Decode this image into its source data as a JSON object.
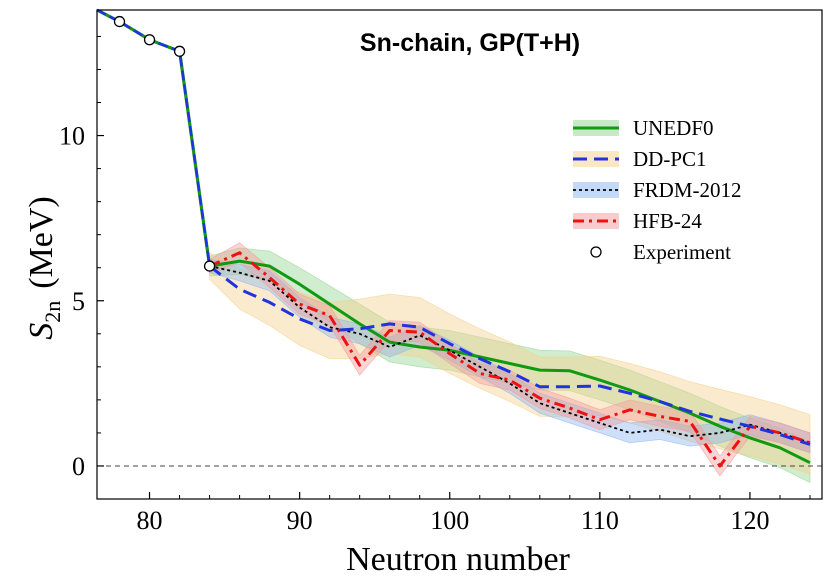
{
  "chart_data": {
    "type": "line",
    "title": "Sn-chain, GP(T+H)",
    "xlabel": "Neutron number",
    "ylabel_main": "S",
    "ylabel_sub": "2n",
    "ylabel_unit": "(MeV)",
    "xlim": [
      76.5,
      124.8
    ],
    "ylim": [
      -1.0,
      13.8
    ],
    "xticks": [
      80,
      90,
      100,
      110,
      120
    ],
    "yticks": [
      0,
      5,
      10
    ],
    "xtick_labels": [
      "80",
      "90",
      "100",
      "110",
      "120"
    ],
    "ytick_labels": [
      "0",
      "5",
      "10"
    ],
    "zero_line": true,
    "legend_position": "top-right",
    "shared_segment": {
      "x": [
        76.5,
        78,
        80,
        82,
        84
      ],
      "y": [
        13.9,
        13.45,
        12.9,
        12.55,
        6.05
      ]
    },
    "experiment": {
      "name": "Experiment",
      "x": [
        78,
        80,
        82,
        84
      ],
      "y": [
        13.45,
        12.9,
        12.55,
        6.05
      ]
    },
    "series": [
      {
        "name": "UNEDF0",
        "color": "#119911",
        "band_color": "#8fd38f",
        "dash": "solid",
        "x": [
          84,
          86,
          88,
          90,
          92,
          94,
          96,
          98,
          100,
          102,
          104,
          106,
          108,
          110,
          112,
          114,
          116,
          118,
          120,
          122,
          124
        ],
        "y": [
          6.05,
          6.2,
          6.05,
          5.5,
          4.9,
          4.3,
          3.75,
          3.6,
          3.5,
          3.3,
          3.1,
          2.9,
          2.88,
          2.6,
          2.3,
          1.95,
          1.6,
          1.2,
          0.85,
          0.55,
          0.1
        ],
        "err": [
          0.3,
          0.4,
          0.45,
          0.5,
          0.55,
          0.6,
          0.6,
          0.6,
          0.6,
          0.6,
          0.6,
          0.6,
          0.6,
          0.6,
          0.6,
          0.6,
          0.6,
          0.6,
          0.6,
          0.6,
          0.6
        ]
      },
      {
        "name": "DD-PC1",
        "color": "#2233dd",
        "band_color": "#f5cf8a",
        "dash": "dashed",
        "x": [
          84,
          86,
          88,
          90,
          92,
          94,
          96,
          98,
          100,
          102,
          104,
          106,
          108,
          110,
          112,
          114,
          116,
          118,
          120,
          122,
          124
        ],
        "y": [
          6.05,
          5.35,
          4.95,
          4.45,
          4.1,
          4.15,
          4.3,
          4.2,
          3.7,
          3.25,
          2.85,
          2.4,
          2.4,
          2.42,
          2.2,
          1.95,
          1.65,
          1.42,
          1.2,
          0.95,
          0.65
        ],
        "err": [
          0.4,
          0.6,
          0.7,
          0.8,
          0.85,
          0.9,
          0.9,
          0.9,
          0.9,
          0.9,
          0.9,
          0.9,
          0.9,
          0.9,
          0.9,
          0.9,
          0.9,
          0.9,
          0.9,
          0.9,
          0.9
        ]
      },
      {
        "name": "FRDM-2012",
        "color": "#000000",
        "band_color": "#8ab4f0",
        "dash": "dotted",
        "x": [
          84,
          86,
          88,
          90,
          92,
          94,
          96,
          98,
          100,
          102,
          104,
          106,
          108,
          110,
          112,
          114,
          116,
          118,
          120,
          122,
          124
        ],
        "y": [
          6.05,
          5.85,
          5.6,
          4.8,
          4.2,
          4.0,
          3.6,
          3.95,
          3.5,
          3.0,
          2.5,
          1.9,
          1.6,
          1.3,
          1.0,
          1.1,
          0.9,
          1.0,
          1.25,
          1.0,
          0.7
        ],
        "err": [
          0.2,
          0.25,
          0.3,
          0.3,
          0.3,
          0.3,
          0.3,
          0.3,
          0.3,
          0.3,
          0.3,
          0.3,
          0.3,
          0.3,
          0.3,
          0.3,
          0.3,
          0.3,
          0.3,
          0.3,
          0.3
        ]
      },
      {
        "name": "HFB-24",
        "color": "#ee1111",
        "band_color": "#f29a9a",
        "dash": "dashdot",
        "x": [
          84,
          86,
          88,
          90,
          92,
          94,
          96,
          98,
          100,
          102,
          104,
          106,
          108,
          110,
          112,
          114,
          116,
          118,
          120,
          122,
          124
        ],
        "y": [
          6.05,
          6.45,
          5.7,
          4.9,
          4.55,
          3.05,
          4.1,
          4.05,
          3.4,
          2.8,
          2.6,
          2.05,
          1.75,
          1.4,
          1.7,
          1.5,
          1.35,
          0.0,
          1.2,
          1.0,
          0.7
        ],
        "err": [
          0.2,
          0.3,
          0.3,
          0.3,
          0.3,
          0.3,
          0.3,
          0.3,
          0.3,
          0.3,
          0.3,
          0.3,
          0.3,
          0.3,
          0.3,
          0.3,
          0.3,
          0.3,
          0.3,
          0.3,
          0.3
        ]
      }
    ]
  }
}
